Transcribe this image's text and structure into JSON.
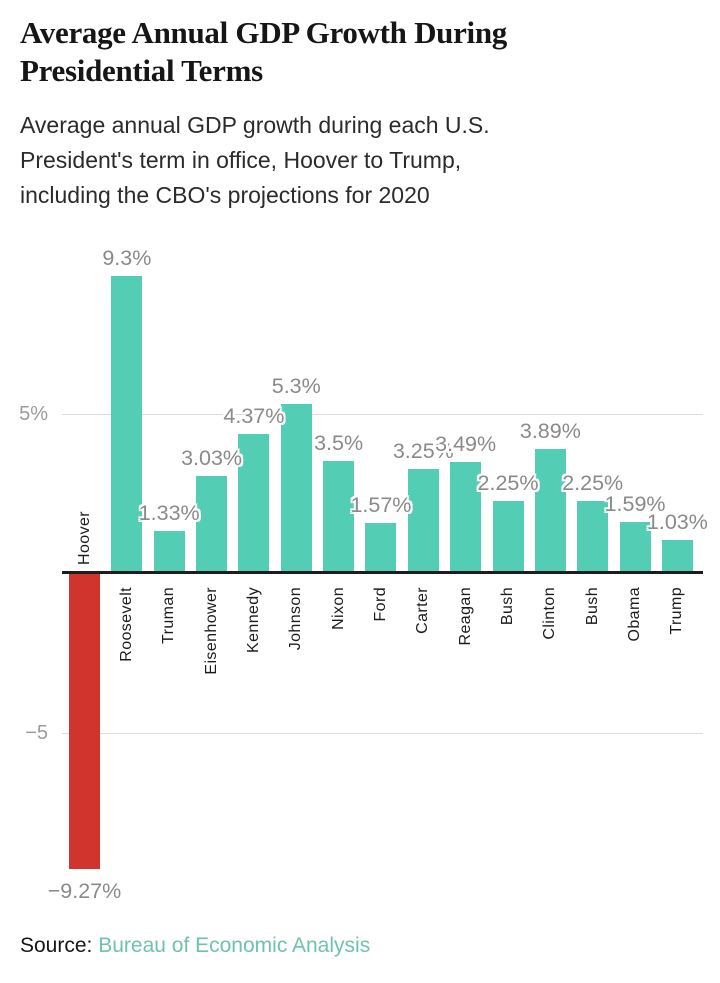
{
  "header": {
    "title": "Average Annual GDP Growth During Presidential Terms",
    "subtitle": "Average annual GDP growth during each U.S. President's term in office, Hoover to Trump, including the CBO's projections for 2020"
  },
  "footer": {
    "source_label": "Source:",
    "source_link": "Bureau of Economic Analysis"
  },
  "chart_data": {
    "type": "bar",
    "title": "Average Annual GDP Growth During Presidential Terms",
    "xlabel": "",
    "ylabel": "",
    "ylim": [
      -10,
      10
    ],
    "grid": "horizontal lines at 5 and -5 only",
    "legend": "none",
    "presidents": [
      {
        "name": "Hoover",
        "value": -9.27,
        "label": "−9.27%"
      },
      {
        "name": "Roosevelt",
        "value": 9.3,
        "label": "9.3%"
      },
      {
        "name": "Truman",
        "value": 1.33,
        "label": "1.33%"
      },
      {
        "name": "Eisenhower",
        "value": 3.03,
        "label": "3.03%"
      },
      {
        "name": "Kennedy",
        "value": 4.37,
        "label": "4.37%"
      },
      {
        "name": "Johnson",
        "value": 5.3,
        "label": "5.3%"
      },
      {
        "name": "Nixon",
        "value": 3.5,
        "label": "3.5%"
      },
      {
        "name": "Ford",
        "value": 1.57,
        "label": "1.57%"
      },
      {
        "name": "Carter",
        "value": 3.25,
        "label": "3.25%"
      },
      {
        "name": "Reagan",
        "value": 3.49,
        "label": "3.49%"
      },
      {
        "name": "Bush",
        "value": 2.25,
        "label": "2.25%"
      },
      {
        "name": "Clinton",
        "value": 3.89,
        "label": "3.89%"
      },
      {
        "name": "Bush",
        "value": 2.25,
        "label": "2.25%"
      },
      {
        "name": "Obama",
        "value": 1.59,
        "label": "1.59%"
      },
      {
        "name": "Trump",
        "value": 1.03,
        "label": "1.03%"
      }
    ],
    "y_gridlines": [
      {
        "value": 5,
        "label": "5%"
      },
      {
        "value": -5,
        "label": "−5"
      }
    ],
    "colors": {
      "positive_bar": "#53cdb4",
      "negative_bar": "#d0342c",
      "value_label": "#8a8a8a",
      "axis_label": "#1c1c1c",
      "gridline": "#dcdcdc",
      "axis_line": "#1d1d1d",
      "source_link": "#6ec2ae"
    }
  }
}
